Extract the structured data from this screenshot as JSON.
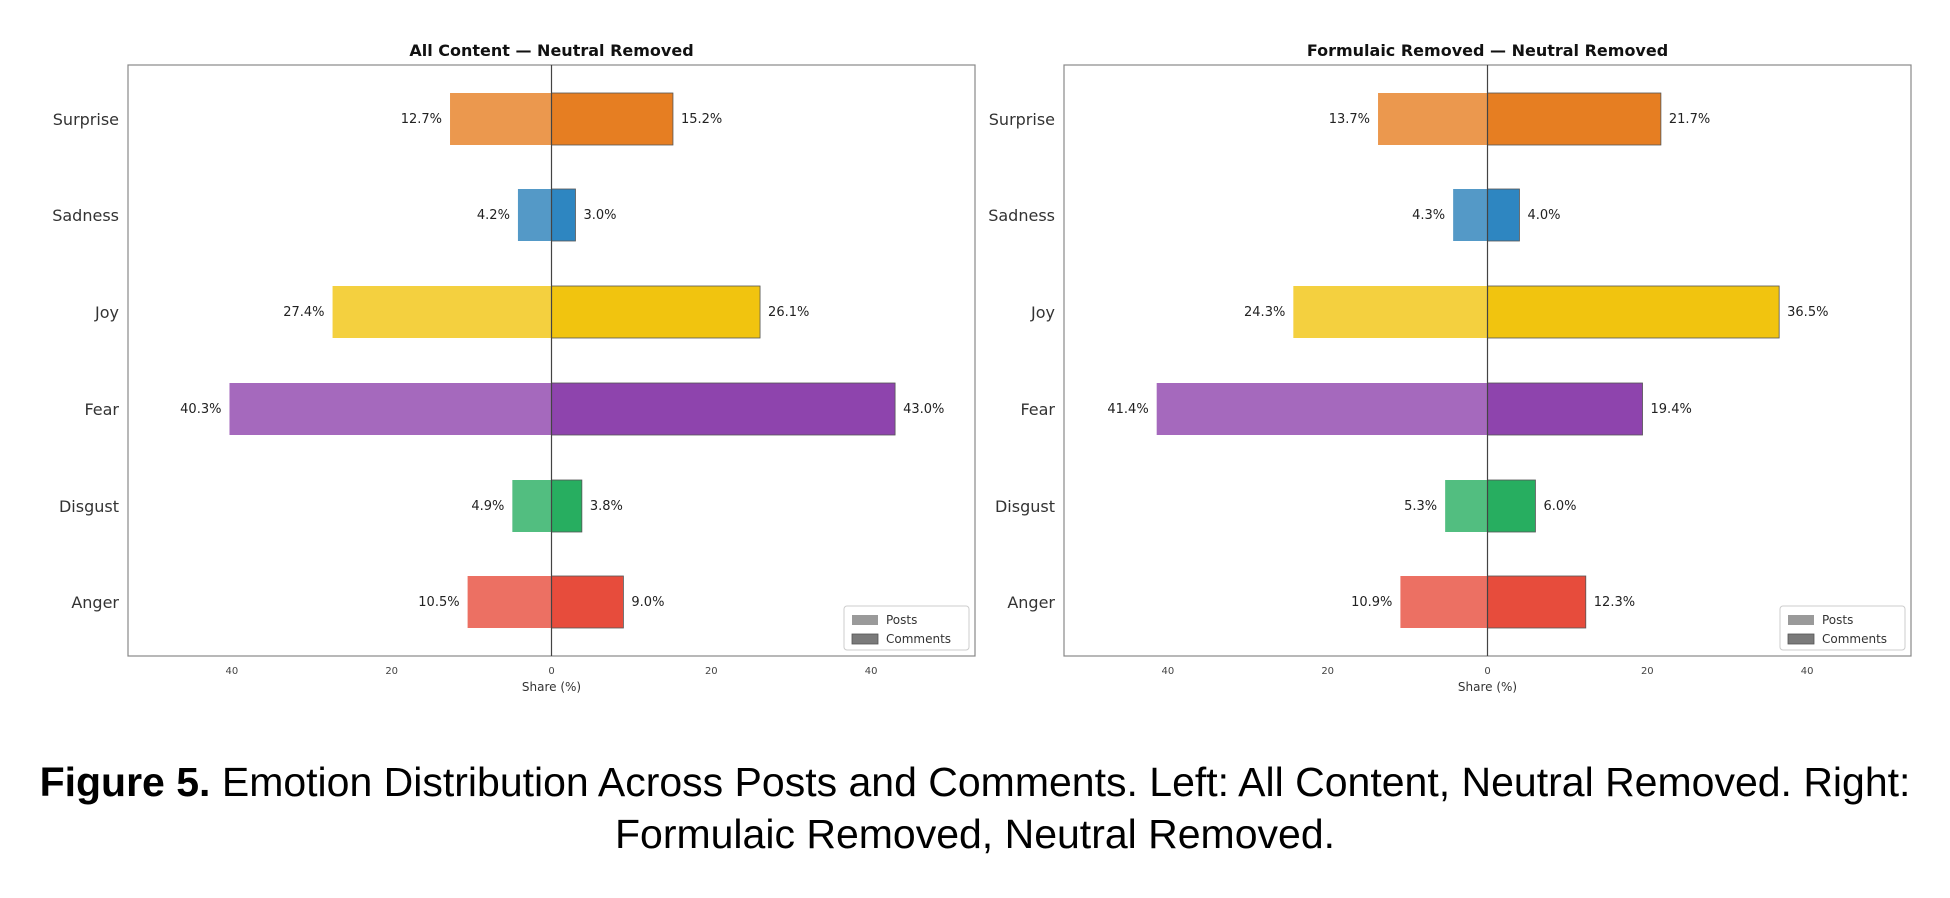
{
  "chart_data": [
    {
      "type": "bar",
      "orientation": "horizontal-diverging",
      "title": "All Content — Neutral Removed",
      "xlabel": "Share (%)",
      "ylabel": "",
      "xlim": [
        -53,
        53
      ],
      "xticks": [
        -40,
        -20,
        0,
        20,
        40
      ],
      "xtick_labels": [
        "40",
        "20",
        "0",
        "20",
        "40"
      ],
      "categories": [
        "Surprise",
        "Sadness",
        "Joy",
        "Fear",
        "Disgust",
        "Anger"
      ],
      "series": [
        {
          "name": "Posts",
          "direction": "left",
          "values": [
            12.7,
            4.2,
            27.4,
            40.3,
            4.9,
            10.5
          ],
          "labels": [
            "12.7%",
            "4.2%",
            "27.4%",
            "40.3%",
            "4.9%",
            "10.5%"
          ]
        },
        {
          "name": "Comments",
          "direction": "right",
          "values": [
            15.2,
            3.0,
            26.1,
            43.0,
            3.8,
            9.0
          ],
          "labels": [
            "15.2%",
            "3.0%",
            "26.1%",
            "43.0%",
            "3.8%",
            "9.0%"
          ]
        }
      ],
      "legend": {
        "location": "lower-right",
        "entries": [
          "Posts",
          "Comments"
        ]
      }
    },
    {
      "type": "bar",
      "orientation": "horizontal-diverging",
      "title": "Formulaic Removed — Neutral Removed",
      "xlabel": "Share (%)",
      "ylabel": "",
      "xlim": [
        -53,
        53
      ],
      "xticks": [
        -40,
        -20,
        0,
        20,
        40
      ],
      "xtick_labels": [
        "40",
        "20",
        "0",
        "20",
        "40"
      ],
      "categories": [
        "Surprise",
        "Sadness",
        "Joy",
        "Fear",
        "Disgust",
        "Anger"
      ],
      "series": [
        {
          "name": "Posts",
          "direction": "left",
          "values": [
            13.7,
            4.3,
            24.3,
            41.4,
            5.3,
            10.9
          ],
          "labels": [
            "13.7%",
            "4.3%",
            "24.3%",
            "41.4%",
            "5.3%",
            "10.9%"
          ]
        },
        {
          "name": "Comments",
          "direction": "right",
          "values": [
            21.7,
            4.0,
            36.5,
            19.4,
            6.0,
            12.3
          ],
          "labels": [
            "21.7%",
            "4.0%",
            "36.5%",
            "19.4%",
            "6.0%",
            "12.3%"
          ]
        }
      ],
      "legend": {
        "location": "lower-right",
        "entries": [
          "Posts",
          "Comments"
        ]
      }
    }
  ],
  "colors": {
    "Surprise": {
      "posts": "#eb984e",
      "comments": "#e67e22"
    },
    "Sadness": {
      "posts": "#5499c7",
      "comments": "#2e86c1"
    },
    "Joy": {
      "posts": "#f4d03f",
      "comments": "#f1c40f"
    },
    "Fear": {
      "posts": "#a569bd",
      "comments": "#8e44ad"
    },
    "Disgust": {
      "posts": "#52be80",
      "comments": "#27ae60"
    },
    "Anger": {
      "posts": "#ec7063",
      "comments": "#e74c3c"
    },
    "legend_posts": "#9a9a9a",
    "legend_comments": "#7a7a7a"
  },
  "caption": {
    "label": "Figure 5.",
    "text": "Emotion Distribution Across Posts and Comments. Left: All Content, Neutral Removed. Right: Formulaic Removed, Neutral Removed."
  }
}
